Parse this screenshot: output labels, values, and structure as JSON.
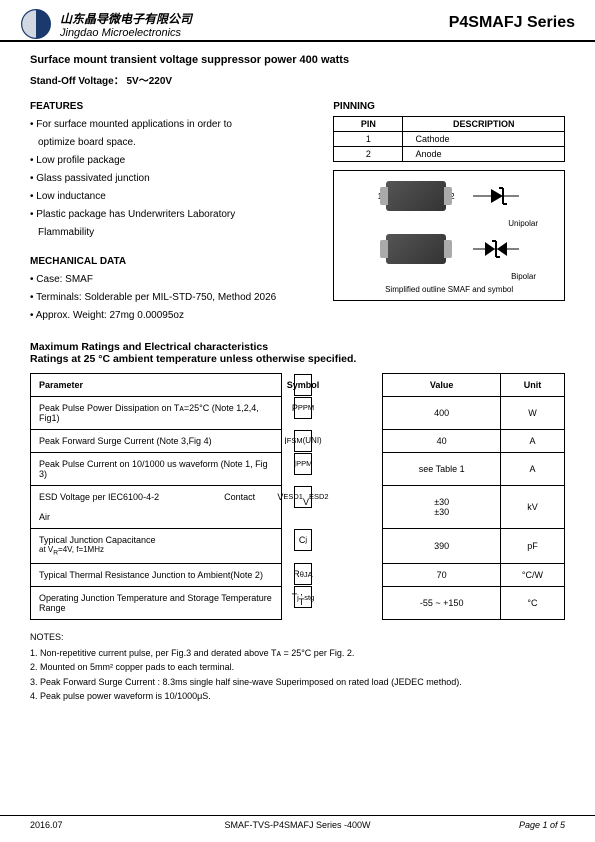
{
  "header": {
    "company_cn": "山东晶导微电子有限公司",
    "company_en": "Jingdao Microelectronics",
    "series": "P4SMAFJ Series",
    "logo_color": "#1a3a6e"
  },
  "titles": {
    "t1": "Surface mount transient voltage suppressor power 400 watts",
    "t2": "Stand-Off Voltage： 5V～220V"
  },
  "features": {
    "heading": "FEATURES",
    "items": [
      "For surface mounted applications in order to",
      "optimize board space.",
      "Low profile package",
      "Glass passivated junction",
      "Low inductance",
      "Plastic package has Underwriters Laboratory",
      "Flammability"
    ],
    "sub_flags": [
      false,
      true,
      false,
      false,
      false,
      false,
      true
    ]
  },
  "mechanical": {
    "heading": "MECHANICAL DATA",
    "items": [
      "Case: SMAF",
      "Terminals: Solderable per MIL-STD-750, Method 2026",
      "Approx. Weight: 27mg  0.00095oz"
    ]
  },
  "pinning": {
    "heading": "PINNING",
    "cols": [
      "PIN",
      "DESCRIPTION"
    ],
    "rows": [
      [
        "1",
        "Cathode"
      ],
      [
        "2",
        "Anode"
      ]
    ]
  },
  "diagram": {
    "pin1": "1",
    "pin2": "2",
    "unipolar": "Unipolar",
    "bipolar": "Bipolar",
    "caption": "Simplified outline SMAF and symbol"
  },
  "ratings_headings": {
    "h1": "Maximum Ratings and Electrical characteristics",
    "h2": "Ratings at 25 °C ambient temperature unless otherwise specified."
  },
  "ratings_table": {
    "columns": [
      "Parameter",
      "Symbol",
      "Value",
      "Unit"
    ],
    "rows": [
      {
        "param": "Peak Pulse Power Dissipation on Tᴀ=25°C (Note 1,2,4, Fig1)",
        "symbol": "P<sub>PPM</sub>",
        "value": "400",
        "unit": "W"
      },
      {
        "param": "Peak Forward Surge Current (Note 3,Fig 4)",
        "symbol": "I<sub>FSM</sub><br><span class='small-note'>(UNI)</span>",
        "value": "40",
        "unit": "A"
      },
      {
        "param": "Peak Pulse Current on 10/1000 us waveform (Note 1, Fig 3)",
        "symbol": "I<sub>PPM</sub>",
        "value": "see Table 1",
        "unit": "A"
      },
      {
        "param": "ESD Voltage per IEC6100-4-2 <span style='display:inline-block;width:60px'></span> Contact<br><span style='display:inline-block;width:232px'></span> Air",
        "symbol": "V<sub>ESD1</sub><br>V<sub>ESD2</sub>",
        "value": "±30<br>±30",
        "unit": "kV"
      },
      {
        "param": "Typical Junction Capacitance<br><span class='small-note'>at V<sub>R</sub>=4V, f=1MHz</span>",
        "symbol": "C<sub>j</sub>",
        "value": "390",
        "unit": "pF"
      },
      {
        "param": "Typical Thermal Resistance Junction to Ambient(Note 2)",
        "symbol": "R<sub>θJA</sub>",
        "value": "70",
        "unit": "°C/W"
      },
      {
        "param": "Operating Junction Temperature and Storage Temperature Range",
        "symbol": "T<sub>j</sub>, T<sub>stg</sub>",
        "value": "-55 ~ +150",
        "unit": "°C"
      }
    ],
    "border_color": "#000000",
    "header_bg": "#ffffff"
  },
  "notes": {
    "heading": "NOTES:",
    "items": [
      "1. Non-repetitive current pulse, per Fig.3 and derated above Tᴀ = 25°C per Fig. 2.",
      "2. Mounted on 5mm² copper pads to each terminal.",
      "3. Peak Forward Surge Current : 8.3ms single half sine-wave Superimposed on rated load (JEDEC method).",
      "4. Peak pulse power waveform is 10/1000μS."
    ]
  },
  "footer": {
    "date": "2016.07",
    "center": "SMAF-TVS-P4SMAFJ Series -400W",
    "page": "Page 1 of 5"
  }
}
